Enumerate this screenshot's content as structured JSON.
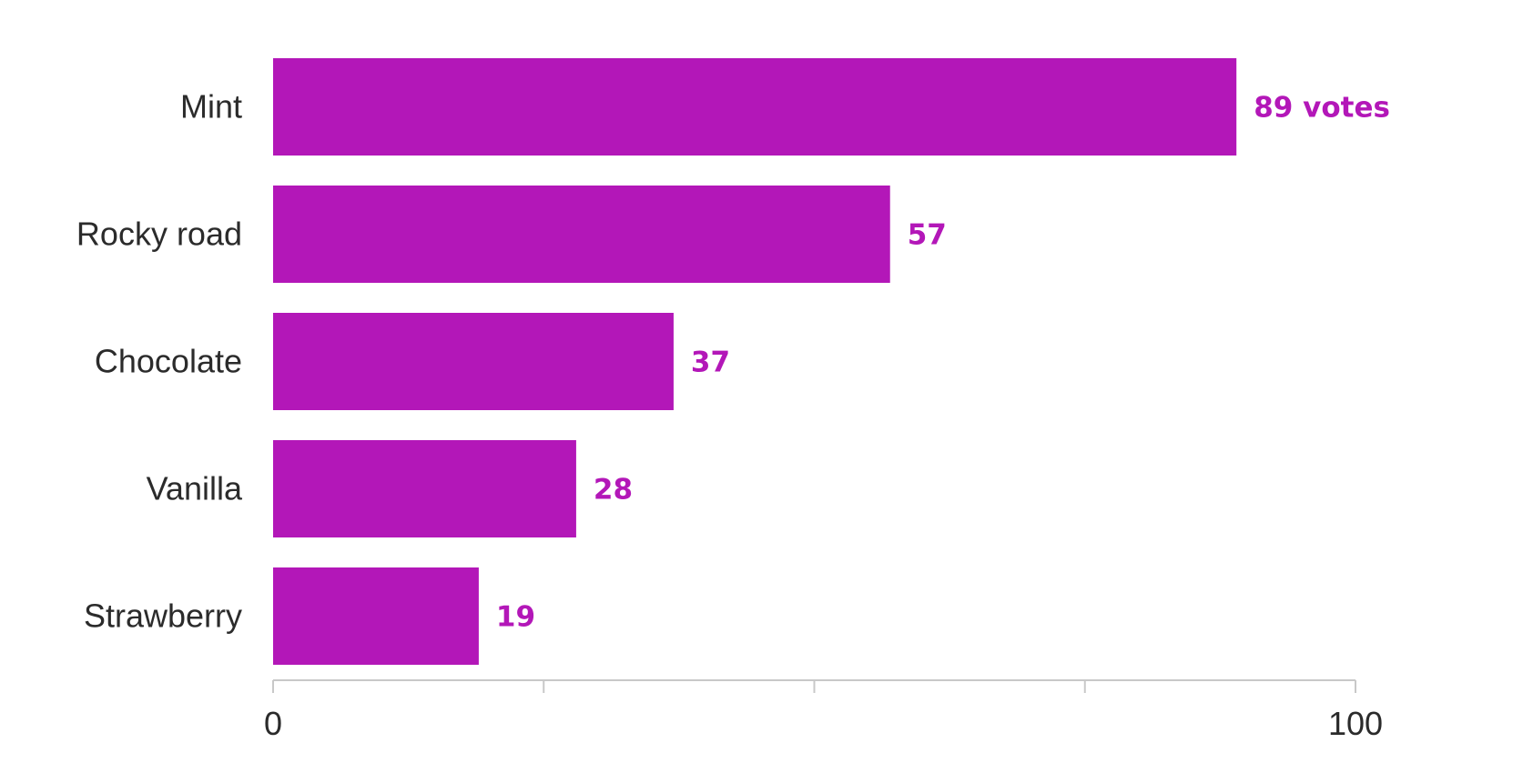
{
  "chart_data": {
    "type": "bar",
    "orientation": "horizontal",
    "categories": [
      "Mint",
      "Rocky road",
      "Chocolate",
      "Vanilla",
      "Strawberry"
    ],
    "values": [
      89,
      57,
      37,
      28,
      19
    ],
    "value_labels": [
      "89 votes",
      "57",
      "37",
      "28",
      "19"
    ],
    "xlim": [
      0,
      100
    ],
    "x_tick_labels": [
      "0",
      "100"
    ],
    "x_minor_ticks": [
      0,
      25,
      50,
      75,
      100
    ],
    "grid": false,
    "title": "",
    "xlabel": "",
    "ylabel": "",
    "colors": {
      "bar": "#b317b8",
      "value_label": "#b317b8",
      "axis": "#c8c8c8",
      "text": "#2b2b2b"
    }
  }
}
